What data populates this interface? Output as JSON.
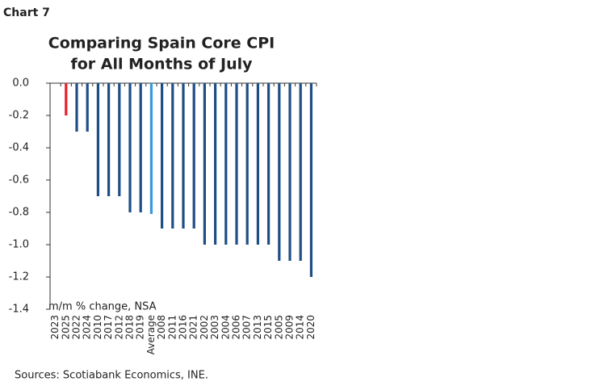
{
  "chart_label": "Chart 7",
  "chart_data": {
    "type": "bar",
    "title": [
      "Comparing Spain Core CPI",
      "for All Months of July"
    ],
    "y_axis_label": "m/m % change, NSA",
    "categories": [
      "2023",
      "2025",
      "2022",
      "2024",
      "2010",
      "2017",
      "2012",
      "2018",
      "2019",
      "Average",
      "2008",
      "2011",
      "2016",
      "2021",
      "2002",
      "2003",
      "2004",
      "2006",
      "2007",
      "2013",
      "2015",
      "2005",
      "2009",
      "2014",
      "2020"
    ],
    "values": [
      0,
      -0.2,
      -0.3,
      -0.3,
      -0.7,
      -0.7,
      -0.7,
      -0.8,
      -0.8,
      -0.81,
      -0.9,
      -0.9,
      -0.9,
      -0.9,
      -1.0,
      -1.0,
      -1.0,
      -1.0,
      -1.0,
      -1.0,
      -1.0,
      -1.1,
      -1.1,
      -1.1,
      -1.2
    ],
    "colors": [
      "#1f4e85",
      "#e8202a",
      "#1f4e85",
      "#1f4e85",
      "#1f4e85",
      "#1f4e85",
      "#1f4e85",
      "#1f4e85",
      "#1f4e85",
      "#3a9ad9",
      "#1f4e85",
      "#1f4e85",
      "#1f4e85",
      "#1f4e85",
      "#1f4e85",
      "#1f4e85",
      "#1f4e85",
      "#1f4e85",
      "#1f4e85",
      "#1f4e85",
      "#1f4e85",
      "#1f4e85",
      "#1f4e85",
      "#1f4e85",
      "#1f4e85"
    ],
    "ylim": [
      -1.4,
      0
    ],
    "yticks": [
      {
        "value": 0,
        "label": "0.0"
      },
      -0.2,
      -0.4,
      -0.6,
      -0.8,
      {
        "value": -1.0,
        "label": "-1.0"
      },
      -1.2,
      -1.4
    ]
  },
  "source": "Sources: Scotiabank Economics, INE."
}
